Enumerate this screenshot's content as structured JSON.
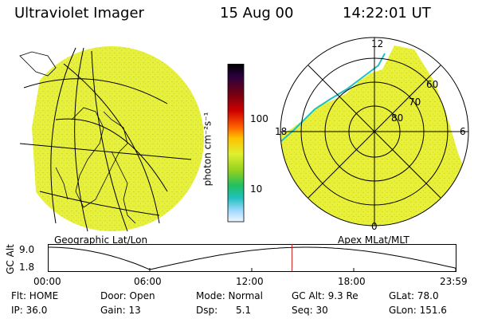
{
  "header": {
    "title": "Ultraviolet Imager",
    "date": "15 Aug 00",
    "time": "14:22:01 UT"
  },
  "panels": {
    "geo_label": "Geographic Lat/Lon",
    "apex_label": "Apex MLat/MLT"
  },
  "colorbar": {
    "unit_label": "photon cm⁻²s⁻¹",
    "ticks": [
      "100",
      "10"
    ],
    "colors": [
      "#000000",
      "#2a0040",
      "#7a0010",
      "#c00000",
      "#ff3000",
      "#ff9000",
      "#ffd000",
      "#d0e820",
      "#80d020",
      "#20c060",
      "#20c0c0",
      "#60c0ff",
      "#a0d8ff",
      "#e0f0ff"
    ]
  },
  "polar": {
    "mlt_labels": [
      "12",
      "18",
      "6",
      "0"
    ],
    "lat_labels": [
      "60",
      "70",
      "80"
    ]
  },
  "altitude_plot": {
    "y_label": "GC Alt",
    "y_ticks": [
      "9.0",
      "1.8"
    ],
    "x_ticks": [
      "00:00",
      "06:00",
      "12:00",
      "18:00",
      "23:59"
    ],
    "marker_hours": 14.37
  },
  "footer": {
    "flt": "Flt: HOME",
    "door": "Door: Open",
    "mode": "Mode: Normal",
    "gc_alt": "GC Alt: 9.3 Re",
    "glat": "GLat: 78.0",
    "ip": "IP: 36.0",
    "gain": "Gain: 13",
    "dsp_label": "Dsp:",
    "dsp_value": "5.1",
    "seq": "Seq: 30",
    "glon": "GLon: 151.6"
  },
  "colors": {
    "image_fill": "#e8f03a",
    "speckle": "#c8dc40",
    "marker": "#d02020"
  }
}
